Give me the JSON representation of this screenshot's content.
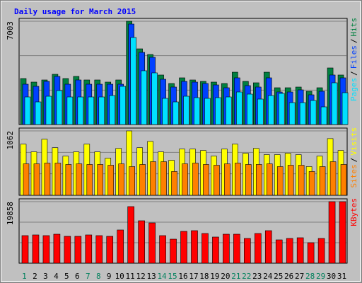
{
  "title": "Daily usage for March 2015",
  "legend_separator": "/",
  "weekend_color": "#00805c",
  "categories": [
    "1",
    "2",
    "3",
    "4",
    "5",
    "6",
    "7",
    "8",
    "9",
    "10",
    "11",
    "12",
    "13",
    "14",
    "15",
    "16",
    "17",
    "18",
    "19",
    "20",
    "21",
    "22",
    "23",
    "24",
    "25",
    "26",
    "27",
    "28",
    "29",
    "30",
    "31"
  ],
  "weekend": [
    true,
    false,
    false,
    false,
    false,
    false,
    true,
    true,
    false,
    false,
    false,
    false,
    false,
    true,
    true,
    false,
    false,
    false,
    false,
    false,
    true,
    true,
    false,
    false,
    false,
    false,
    false,
    true,
    true,
    false,
    false
  ],
  "chart_data": [
    {
      "type": "bar",
      "ylim": [
        0,
        7003
      ],
      "yticks": [
        7003
      ],
      "series": [
        {
          "name": "Hits",
          "color": "#008040",
          "values": [
            3118,
            2878,
            3022,
            3406,
            3118,
            3262,
            3022,
            3022,
            2878,
            3022,
            7003,
            5132,
            4749,
            3358,
            2782,
            3166,
            3022,
            2926,
            2878,
            2782,
            3549,
            2926,
            2830,
            3549,
            2494,
            2494,
            2542,
            2254,
            2494,
            3837,
            3358
          ]
        },
        {
          "name": "Files",
          "color": "#0040ff",
          "values": [
            2734,
            2590,
            2926,
            3262,
            2734,
            3022,
            2734,
            2734,
            2734,
            2734,
            6811,
            4893,
            4557,
            3070,
            2542,
            2926,
            2878,
            2782,
            2686,
            2494,
            3166,
            2638,
            2542,
            3166,
            2206,
            2206,
            2350,
            2014,
            2254,
            3358,
            3166
          ]
        },
        {
          "name": "Pages",
          "color": "#00e0ff",
          "values": [
            1870,
            1534,
            1918,
            2302,
            1870,
            1870,
            1870,
            1870,
            1966,
            2590,
            5900,
            3646,
            3502,
            1774,
            1534,
            1918,
            1822,
            1774,
            1822,
            1870,
            2206,
            2062,
            1726,
            1966,
            2110,
            1486,
            1486,
            1630,
            1198,
            2830,
            2158
          ]
        }
      ]
    },
    {
      "type": "bar",
      "ylim": [
        0,
        1062
      ],
      "yticks": [
        1062
      ],
      "series": [
        {
          "name": "Visits",
          "color": "#ffff00",
          "values": [
            843,
            716,
            924,
            785,
            646,
            716,
            843,
            716,
            612,
            773,
            1062,
            785,
            889,
            716,
            577,
            762,
            762,
            739,
            646,
            762,
            843,
            693,
            773,
            670,
            670,
            693,
            670,
            473,
            646,
            935,
            739
          ]
        },
        {
          "name": "Sites",
          "color": "#ff8000",
          "values": [
            519,
            519,
            531,
            531,
            508,
            519,
            508,
            508,
            496,
            519,
            473,
            508,
            554,
            554,
            392,
            519,
            531,
            508,
            496,
            519,
            531,
            508,
            508,
            519,
            473,
            496,
            496,
            392,
            473,
            554,
            508
          ]
        }
      ]
    },
    {
      "type": "bar",
      "ylim": [
        0,
        19858
      ],
      "yticks": [
        19858
      ],
      "series": [
        {
          "name": "KBytes",
          "color": "#ff0000",
          "values": [
            8902,
            9130,
            8902,
            9359,
            8674,
            8674,
            9130,
            8902,
            8674,
            10728,
            18260,
            13695,
            13010,
            8902,
            7761,
            10271,
            10500,
            9587,
            8446,
            9359,
            9359,
            7989,
            9587,
            10500,
            7533,
            7989,
            8217,
            6619,
            7989,
            19858,
            19858
          ]
        }
      ]
    }
  ]
}
